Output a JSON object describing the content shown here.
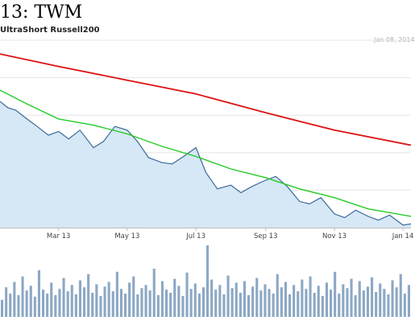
{
  "heading": "13: TWM",
  "subtitle": "UltraShort Russell200",
  "date_label": "Jan 08, 2014",
  "colors": {
    "price_line": "#3a6a9a",
    "price_fill": "#d6e7f5",
    "ma_fast": "#22cc22",
    "ma_slow": "#dd1111",
    "volume": "#8ca8c4",
    "grid": "#e6e6e6",
    "axis": "#bbbbbb"
  },
  "chart_data": {
    "type": "line",
    "x_tick_labels": [
      "Mar 13",
      "May 13",
      "Jul 13",
      "Sep 13",
      "Nov 13",
      "Jan 14"
    ],
    "x_range": [
      "2013-01-08",
      "2014-01-08"
    ],
    "series": [
      {
        "role": "price",
        "x": [
          "2013-01-08",
          "2013-01-15",
          "2013-01-22",
          "2013-02-01",
          "2013-02-10",
          "2013-02-20",
          "2013-03-01",
          "2013-03-10",
          "2013-03-20",
          "2013-04-01",
          "2013-04-10",
          "2013-04-20",
          "2013-05-01",
          "2013-05-10",
          "2013-05-20",
          "2013-06-01",
          "2013-06-10",
          "2013-06-20",
          "2013-07-01",
          "2013-07-10",
          "2013-07-20",
          "2013-08-01",
          "2013-08-10",
          "2013-08-20",
          "2013-09-01",
          "2013-09-10",
          "2013-09-20",
          "2013-10-01",
          "2013-10-10",
          "2013-10-20",
          "2013-11-01",
          "2013-11-10",
          "2013-11-20",
          "2013-12-01",
          "2013-12-10",
          "2013-12-20",
          "2014-01-01",
          "2014-01-08"
        ],
        "y": [
          27.6,
          27.1,
          26.9,
          26.2,
          25.6,
          24.9,
          25.2,
          24.6,
          25.3,
          23.9,
          24.4,
          25.6,
          25.3,
          24.4,
          23.1,
          22.7,
          22.6,
          23.2,
          23.9,
          21.9,
          20.6,
          20.9,
          20.3,
          20.8,
          21.3,
          21.6,
          20.8,
          19.6,
          19.4,
          19.9,
          18.6,
          18.3,
          18.9,
          18.4,
          18.1,
          18.5,
          17.7,
          17.8
        ]
      },
      {
        "role": "moving-average-fast",
        "x": [
          "2013-01-08",
          "2013-02-01",
          "2013-03-01",
          "2013-04-01",
          "2013-05-01",
          "2013-06-01",
          "2013-07-01",
          "2013-08-01",
          "2013-09-01",
          "2013-10-01",
          "2013-11-01",
          "2013-12-01",
          "2014-01-08"
        ],
        "y": [
          28.5,
          27.4,
          26.2,
          25.7,
          25.0,
          24.0,
          23.2,
          22.2,
          21.5,
          20.6,
          19.9,
          19.0,
          18.4
        ]
      },
      {
        "role": "moving-average-slow",
        "x": [
          "2013-01-08",
          "2013-03-01",
          "2013-05-01",
          "2013-07-01",
          "2013-09-01",
          "2013-11-01",
          "2014-01-08"
        ],
        "y": [
          31.4,
          30.4,
          29.3,
          28.2,
          26.7,
          25.3,
          24.1
        ]
      }
    ],
    "volume": [
      22,
      38,
      30,
      45,
      28,
      52,
      34,
      40,
      26,
      60,
      35,
      30,
      44,
      28,
      36,
      50,
      33,
      41,
      29,
      47,
      38,
      55,
      31,
      42,
      27,
      39,
      45,
      33,
      58,
      36,
      30,
      44,
      52,
      29,
      37,
      41,
      34,
      62,
      28,
      46,
      35,
      31,
      49,
      40,
      27,
      57,
      36,
      43,
      30,
      38,
      92,
      48,
      35,
      41,
      29,
      53,
      37,
      44,
      31,
      46,
      28,
      39,
      50,
      34,
      42,
      36,
      30,
      55,
      38,
      45,
      29,
      41,
      33,
      48,
      36,
      52,
      31,
      40,
      27,
      44,
      35,
      58,
      30,
      42,
      37,
      49,
      28,
      46,
      34,
      39,
      51,
      32,
      43,
      36,
      29,
      47,
      38,
      55,
      30,
      41
    ],
    "y_range": [
      17.5,
      32.5
    ],
    "grid": true,
    "legend": "none"
  }
}
